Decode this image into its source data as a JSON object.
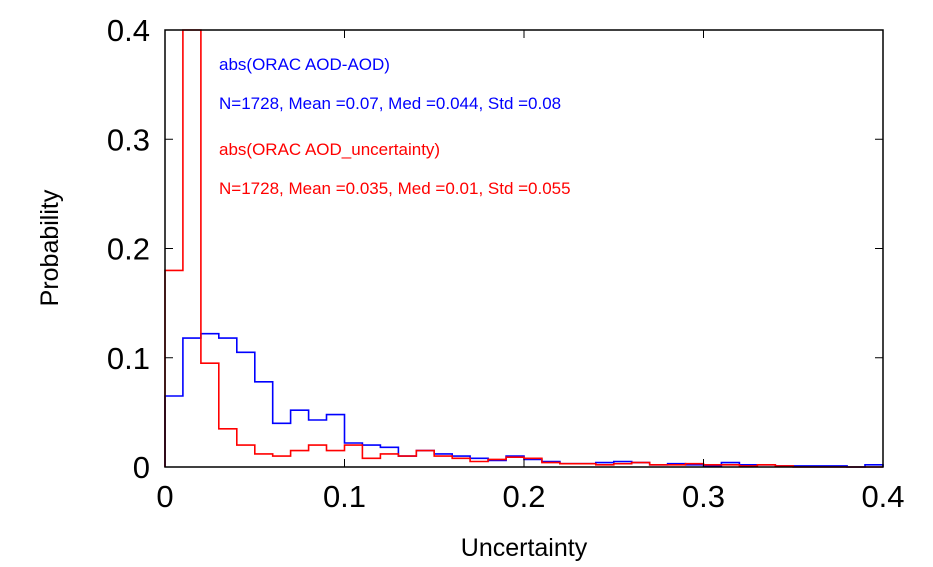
{
  "chart_data": {
    "type": "histogram",
    "title": "",
    "xlabel": "Uncertainty",
    "ylabel": "Probability",
    "xlim": [
      0,
      0.4
    ],
    "ylim": [
      0,
      0.4
    ],
    "x_ticks": [
      "0",
      "0.1",
      "0.2",
      "0.3",
      "0.4"
    ],
    "y_ticks": [
      "0",
      "0.1",
      "0.2",
      "0.3",
      "0.4"
    ],
    "grid": false,
    "bin_edges": [
      0,
      0.01,
      0.02,
      0.03,
      0.04,
      0.05,
      0.06,
      0.07,
      0.08,
      0.09,
      0.1,
      0.11,
      0.12,
      0.13,
      0.14,
      0.15,
      0.16,
      0.17,
      0.18,
      0.19,
      0.2,
      0.21,
      0.22,
      0.23,
      0.24,
      0.25,
      0.26,
      0.27,
      0.28,
      0.29,
      0.3,
      0.31,
      0.32,
      0.33,
      0.34,
      0.35,
      0.36,
      0.37,
      0.38,
      0.39,
      0.4
    ],
    "series": [
      {
        "name": "abs(ORAC AOD-AOD)",
        "color": "#0000ff",
        "values": [
          0.065,
          0.118,
          0.122,
          0.118,
          0.105,
          0.078,
          0.04,
          0.052,
          0.043,
          0.048,
          0.022,
          0.02,
          0.018,
          0.01,
          0.015,
          0.012,
          0.01,
          0.008,
          0.006,
          0.01,
          0.007,
          0.005,
          0.003,
          0.003,
          0.004,
          0.005,
          0.004,
          0.002,
          0.003,
          0.002,
          0.001,
          0.004,
          0.002,
          0.002,
          0.001,
          0.001,
          0.001,
          0.001,
          0.0,
          0.002
        ]
      },
      {
        "name": "abs(ORAC AOD_uncertainty)",
        "color": "#ff0000",
        "values": [
          0.18,
          0.4,
          0.095,
          0.035,
          0.02,
          0.012,
          0.01,
          0.015,
          0.02,
          0.015,
          0.02,
          0.008,
          0.012,
          0.01,
          0.015,
          0.01,
          0.008,
          0.005,
          0.007,
          0.009,
          0.008,
          0.004,
          0.003,
          0.003,
          0.002,
          0.003,
          0.004,
          0.002,
          0.002,
          0.003,
          0.002,
          0.002,
          0.001,
          0.002,
          0.001,
          0.0,
          0.0,
          0.0,
          0.0,
          0.0
        ]
      }
    ],
    "annotations": [
      {
        "text": "abs(ORAC AOD-AOD)",
        "color": "#0000ff"
      },
      {
        "text": "N=1728, Mean =0.07, Med =0.044, Std =0.08",
        "color": "#0000ff"
      },
      {
        "text": "abs(ORAC AOD_uncertainty)",
        "color": "#ff0000"
      },
      {
        "text": "N=1728, Mean =0.035, Med =0.01, Std =0.055",
        "color": "#ff0000"
      }
    ]
  }
}
